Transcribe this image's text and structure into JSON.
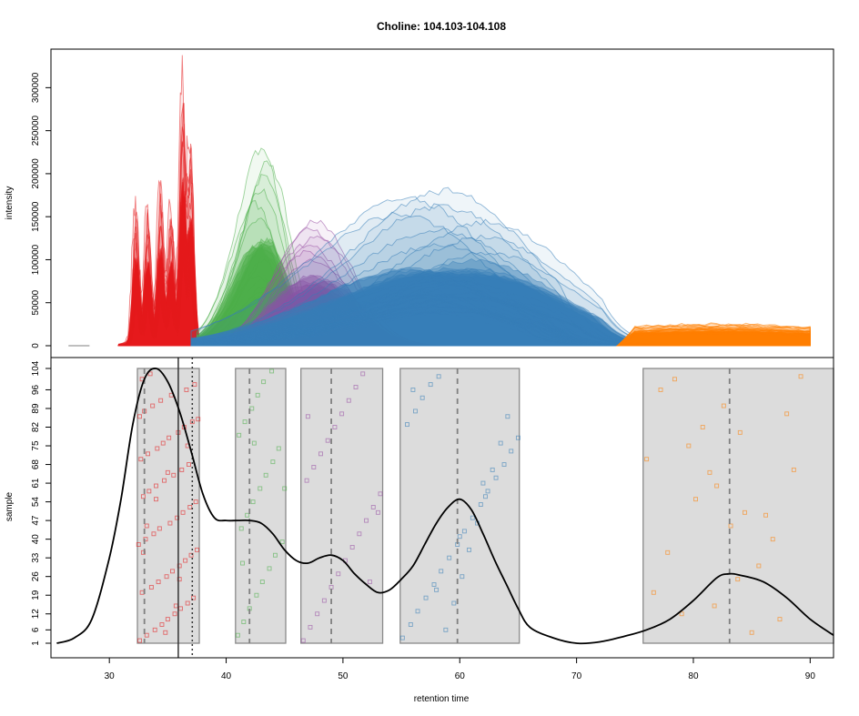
{
  "chart_data": [
    {
      "panel": "top",
      "type": "area",
      "title": "Choline: 104.103-104.108",
      "xlabel": "",
      "ylabel": "intensity",
      "xlim": [
        25,
        92
      ],
      "ylim": [
        0,
        330000
      ],
      "y_ticks": [
        0,
        50000,
        100000,
        150000,
        200000,
        250000,
        300000
      ],
      "y_tick_labels": [
        "0",
        "50000",
        "100000",
        "150000",
        "200000",
        "250000",
        "300000"
      ],
      "grid": false,
      "legend": "none",
      "series": [
        {
          "color": "#E41A1C",
          "x_range": [
            31,
            38
          ],
          "peak_x": [
            32.3,
            33.3,
            34.4,
            35.3,
            36.3,
            37.0
          ],
          "peak_y": [
            165000,
            150000,
            170000,
            150000,
            310000,
            240000
          ],
          "envelope_max": 325000,
          "traces": 100
        },
        {
          "color": "#4DAF4A",
          "x_range": [
            38,
            49
          ],
          "peak_x": 43.5,
          "peak_y": 245000,
          "traces": 40
        },
        {
          "color": "#984EA3",
          "x_range": [
            41,
            58
          ],
          "peak_x": 46.5,
          "peak_y": 168000,
          "traces": 40
        },
        {
          "color": "#377EB8",
          "x_range": [
            38,
            76
          ],
          "peak_x": 60.5,
          "peak_y": 195000,
          "traces": 100
        },
        {
          "color": "#FF7F00",
          "x_range": [
            74,
            90
          ],
          "peak_x": 82,
          "peak_y": 25000,
          "traces": 30
        }
      ]
    },
    {
      "panel": "bottom",
      "type": "scatter",
      "xlabel": "retention time",
      "ylabel": "sample",
      "xlim": [
        25,
        92
      ],
      "ylim": [
        1,
        104
      ],
      "x_ticks": [
        30,
        40,
        50,
        60,
        70,
        80,
        90
      ],
      "x_tick_labels": [
        "30",
        "40",
        "50",
        "60",
        "70",
        "80",
        "90"
      ],
      "y_ticks": [
        1,
        6,
        12,
        19,
        26,
        33,
        40,
        47,
        54,
        61,
        68,
        75,
        82,
        89,
        96,
        104
      ],
      "y_tick_labels": [
        "1",
        "6",
        "12",
        "19",
        "26",
        "33",
        "40",
        "47",
        "54",
        "61",
        "68",
        "75",
        "82",
        "89",
        "96",
        "104"
      ],
      "grid": false,
      "legend": "none",
      "peak_groups": [
        {
          "color": "#E41A1C",
          "rect": [
            32.4,
            37.7
          ],
          "median": 33.0
        },
        {
          "color": "#4DAF4A",
          "rect": [
            40.8,
            45.1
          ],
          "median": 42.0
        },
        {
          "color": "#984EA3",
          "rect": [
            46.4,
            53.4
          ],
          "median": 49.0
        },
        {
          "color": "#377EB8",
          "rect": [
            54.9,
            65.1
          ],
          "median": 59.8
        },
        {
          "color": "#FF7F00",
          "rect": [
            75.7,
            92.0
          ],
          "median": 83.1
        }
      ],
      "vertical_lines": [
        {
          "x": 35.9,
          "style": "solid",
          "color": "#333333"
        },
        {
          "x": 37.1,
          "style": "dotted",
          "color": "#333333"
        }
      ],
      "density_curve": {
        "x": [
          25.5,
          27,
          28.5,
          30,
          31,
          32,
          33,
          34,
          35,
          36,
          37,
          38,
          39,
          40,
          41,
          42,
          43,
          44,
          45,
          46,
          47,
          48,
          49,
          50,
          51,
          52,
          53,
          54,
          55,
          56,
          57,
          58,
          59,
          60,
          61,
          62,
          63,
          64,
          65,
          66,
          68,
          70,
          72,
          74,
          76,
          78,
          80,
          82,
          83,
          84,
          86,
          88,
          90,
          92
        ],
        "y": [
          1,
          3,
          10,
          33,
          55,
          83,
          100,
          104,
          99,
          88,
          73,
          57,
          48,
          47,
          47,
          47,
          46,
          42,
          36,
          32,
          31,
          33,
          34,
          32,
          27,
          23,
          20,
          21,
          25,
          30,
          38,
          46,
          52,
          55,
          51,
          42,
          32,
          23,
          14,
          7,
          3,
          1,
          1.5,
          3.5,
          6,
          10,
          17,
          25.5,
          27,
          26.5,
          24,
          18,
          10,
          4
        ]
      },
      "series": [
        {
          "name": "",
          "color": "#E41A1C",
          "x": [
            32.6,
            33.2,
            33.9,
            34.5,
            35.0,
            35.6,
            36.1,
            36.7,
            37.2,
            32.8,
            33.6,
            34.2,
            34.9,
            35.4,
            36.0,
            36.5,
            37.0,
            37.5,
            32.5,
            33.1,
            33.8,
            34.3,
            35.2,
            35.8,
            36.3,
            36.9,
            37.4,
            32.9,
            33.4,
            34.0,
            34.7,
            35.5,
            36.2,
            36.8,
            32.7,
            33.3,
            34.1,
            34.6,
            35.1,
            35.9,
            36.4,
            37.1,
            32.6,
            33.0,
            33.7,
            34.4,
            35.3,
            36.6,
            37.3,
            32.8,
            33.5,
            34.8,
            35.7,
            36.0,
            32.9,
            33.2,
            34.0,
            35.0,
            36.7,
            37.6
          ],
          "y": [
            2,
            4,
            6,
            8,
            10,
            12,
            14,
            16,
            18,
            20,
            22,
            24,
            26,
            28,
            30,
            32,
            34,
            36,
            38,
            40,
            42,
            44,
            46,
            48,
            50,
            52,
            54,
            56,
            58,
            60,
            62,
            64,
            66,
            68,
            70,
            72,
            74,
            76,
            78,
            80,
            82,
            84,
            86,
            88,
            90,
            92,
            94,
            96,
            98,
            100,
            102,
            5,
            15,
            25,
            35,
            45,
            55,
            65,
            75,
            85
          ]
        },
        {
          "name": "",
          "color": "#4DAF4A",
          "x": [
            41.0,
            41.5,
            42.0,
            42.6,
            43.1,
            43.7,
            44.2,
            44.8,
            41.3,
            41.8,
            42.3,
            42.9,
            43.4,
            44.0,
            44.5,
            41.1,
            41.6,
            42.2,
            42.7,
            43.2,
            43.9,
            45.0,
            41.4,
            42.4
          ],
          "y": [
            4,
            9,
            14,
            19,
            24,
            29,
            34,
            39,
            44,
            49,
            54,
            59,
            64,
            69,
            74,
            79,
            84,
            89,
            94,
            99,
            103,
            59,
            31,
            76
          ]
        },
        {
          "name": "",
          "color": "#984EA3",
          "x": [
            46.6,
            47.2,
            47.8,
            48.4,
            49.0,
            49.6,
            50.2,
            50.8,
            51.4,
            52.0,
            52.6,
            53.2,
            46.9,
            47.5,
            48.1,
            48.7,
            49.3,
            49.9,
            50.5,
            51.1,
            51.7,
            52.3,
            53.0,
            47.0
          ],
          "y": [
            2,
            7,
            12,
            17,
            22,
            27,
            32,
            37,
            42,
            47,
            52,
            57,
            62,
            67,
            72,
            77,
            82,
            87,
            92,
            97,
            102,
            24,
            50,
            86
          ]
        },
        {
          "name": "",
          "color": "#377EB8",
          "x": [
            55.1,
            55.8,
            56.4,
            57.1,
            57.8,
            58.4,
            59.1,
            59.8,
            60.4,
            61.1,
            61.8,
            62.4,
            63.1,
            63.8,
            64.4,
            65.0,
            55.5,
            56.2,
            56.8,
            57.5,
            58.2,
            58.8,
            59.5,
            60.2,
            60.8,
            61.5,
            62.2,
            62.8,
            63.5,
            64.1,
            56.0,
            58.0,
            60.0,
            62.0
          ],
          "y": [
            3,
            8,
            13,
            18,
            23,
            28,
            33,
            38,
            43,
            48,
            53,
            58,
            63,
            68,
            73,
            78,
            83,
            88,
            93,
            98,
            101,
            6,
            16,
            26,
            36,
            46,
            56,
            66,
            76,
            86,
            96,
            21,
            41,
            61
          ]
        },
        {
          "name": "",
          "color": "#FF7F00",
          "x": [
            76.0,
            77.2,
            78.4,
            79.6,
            80.8,
            82.0,
            83.2,
            84.4,
            85.6,
            86.8,
            88.0,
            89.2,
            76.6,
            77.8,
            79.0,
            80.2,
            81.4,
            82.6,
            83.8,
            85.0,
            86.2,
            87.4,
            88.6,
            81.8,
            84.0
          ],
          "y": [
            70,
            96,
            100,
            75,
            82,
            60,
            45,
            50,
            30,
            40,
            87,
            101,
            20,
            35,
            12,
            55,
            65,
            90,
            25,
            5,
            49,
            10,
            66,
            15,
            80
          ]
        }
      ]
    }
  ]
}
